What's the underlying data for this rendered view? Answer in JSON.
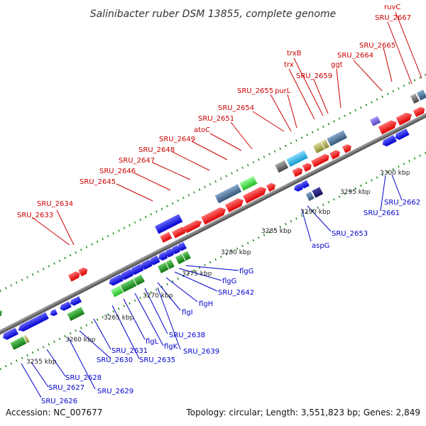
{
  "title": "Salinibacter ruber DSM 13855, complete genome",
  "accession": "Accession: NC_007677",
  "summary": "Topology: circular; Length: 3,551,823 bp; Genes: 2,849",
  "colors": {
    "forward_cds": "#ff1a1a",
    "reverse_cds": "#1a1aff",
    "green_feature": "#2aa82a",
    "light_green_feature": "#44dd44",
    "teal_feature": "#4477aa",
    "cyan_feature": "#22bbee",
    "olive_feature": "#aaaa55",
    "navy_feature": "#1a1a88",
    "grey_feature": "#777777",
    "purple_feature": "#7766dd",
    "forward_label": "#cc0000",
    "reverse_label": "#0000cc",
    "backbone": "#888888",
    "ticks": "#2a8a2a"
  },
  "kbp_labels": [
    "3255 kbp",
    "3260 kbp",
    "3265 kbp",
    "3270 kbp",
    "3275 kbp",
    "3280 kbp",
    "3285 kbp",
    "3290 kbp",
    "3295 kbp",
    "3300 kbp"
  ],
  "top_labels": [
    "SRU_2633",
    "SRU_2634",
    "SRU_2645",
    "SRU_2646",
    "SRU_2647",
    "SRU_2648",
    "SRU_2649",
    "atoC",
    "SRU_2651",
    "SRU_2654",
    "SRU_2655",
    "purL",
    "trx",
    "trxB",
    "SRU_2659",
    "ggt",
    "SRU_2664",
    "SRU_2665",
    "SRU_2667",
    "ruvC"
  ],
  "bottom_labels": [
    "SRU_2626",
    "SRU_2627",
    "SRU_2628",
    "SRU_2629",
    "SRU_2630",
    "SRU_2631",
    "SRU_2635",
    "flgL",
    "flgK",
    "SRU_2639",
    "SRU_2638",
    "flgI",
    "flgH",
    "SRU_2642",
    "flgG",
    "flgG",
    "aspG",
    "SRU_2653",
    "SRU_2661",
    "SRU_2662"
  ]
}
